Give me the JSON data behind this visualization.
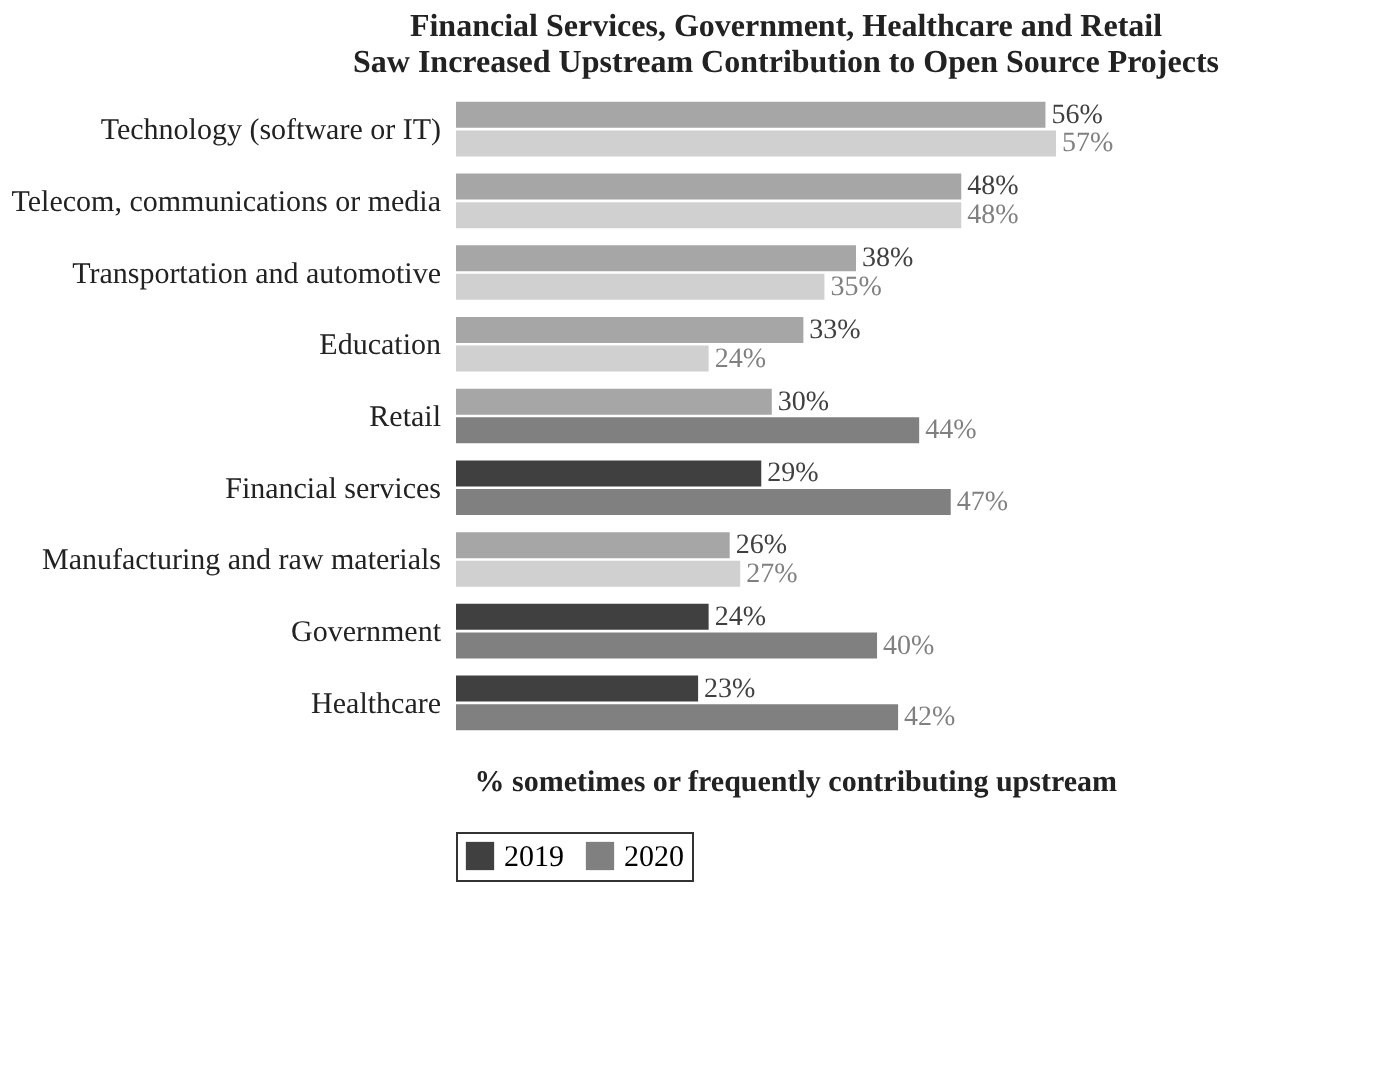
{
  "chart_data": {
    "type": "bar",
    "orientation": "horizontal",
    "title": "Financial Services, Government, Healthcare and Retail\nSaw Increased Upstream Contribution to Open Source Projects",
    "xlabel": "% sometimes or frequently contributing upstream",
    "categories": [
      "Technology (software or IT)",
      "Telecom, communications or media",
      "Transportation and automotive",
      "Education",
      "Retail",
      "Financial services",
      "Manufacturing and raw materials",
      "Government",
      "Healthcare"
    ],
    "series": [
      {
        "name": "2019",
        "color": "#404040",
        "colors": [
          "#a6a6a6",
          "#a6a6a6",
          "#a6a6a6",
          "#a6a6a6",
          "#a6a6a6",
          "#404040",
          "#a6a6a6",
          "#404040",
          "#404040"
        ],
        "values": [
          56,
          48,
          38,
          33,
          30,
          29,
          26,
          24,
          23
        ],
        "value_labels": [
          "56%",
          "48%",
          "38%",
          "33%",
          "30%",
          "29%",
          "26%",
          "24%",
          "23%"
        ]
      },
      {
        "name": "2020",
        "color": "#808080",
        "colors": [
          "#d0d0d0",
          "#d0d0d0",
          "#d0d0d0",
          "#d0d0d0",
          "#808080",
          "#808080",
          "#d0d0d0",
          "#808080",
          "#808080"
        ],
        "values": [
          57,
          48,
          35,
          24,
          44,
          47,
          27,
          40,
          42
        ],
        "value_labels": [
          "57%",
          "48%",
          "35%",
          "24%",
          "44%",
          "47%",
          "27%",
          "40%",
          "42%"
        ]
      }
    ],
    "tick_labels": "y",
    "grid": false,
    "legend": "bottom"
  }
}
